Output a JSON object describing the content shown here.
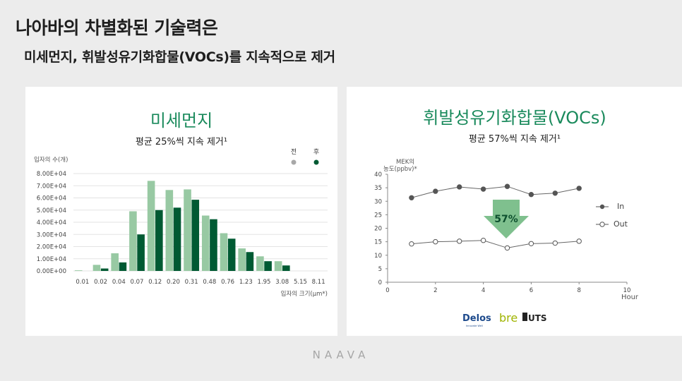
{
  "header": {
    "title": "나아바의 차별화된 기술력은",
    "subtitle": "미세먼지, 휘발성유기화합물(VOCs)를 지속적으로 제거"
  },
  "brand": "NAAVA",
  "colors": {
    "accent": "#1a8a5c",
    "before": "#98c9a3",
    "after": "#005a33",
    "line": "#555555"
  },
  "chart_data": [
    {
      "type": "bar",
      "title": "미세먼지",
      "subtitle": "평균 25%씩 지속 제거¹",
      "ylabel": "입자의 수(개)",
      "xlabel": "입자의 크기(μm*)",
      "ylim": [
        0,
        80000
      ],
      "grid": true,
      "legend": "top-right",
      "y_ticks": [
        "0.00E+00",
        "1.00E+04",
        "2.00E+04",
        "3.00E+04",
        "4.00E+04",
        "5.00E+04",
        "6.00E+04",
        "7.00E+04",
        "8.00E+04"
      ],
      "categories": [
        "0.01",
        "0.02",
        "0.04",
        "0.07",
        "0.12",
        "0.20",
        "0.31",
        "0.48",
        "0.76",
        "1.23",
        "1.95",
        "3.08",
        "5.15",
        "8.11"
      ],
      "series": [
        {
          "name": "전",
          "values": [
            500,
            5000,
            14500,
            49000,
            74000,
            66500,
            67000,
            45500,
            31000,
            18500,
            12000,
            8000,
            0,
            0
          ]
        },
        {
          "name": "후",
          "values": [
            0,
            2000,
            7000,
            30000,
            50000,
            52000,
            58500,
            42500,
            26500,
            15500,
            8000,
            4500,
            0,
            0
          ]
        }
      ]
    },
    {
      "type": "line",
      "title": "휘발성유기화합물(VOCs)",
      "subtitle": "평균 57%씩 지속 제거¹",
      "ylabel": "MEK의\n농도(ppbv)*",
      "xlabel": "Hour",
      "xlim": [
        0,
        10
      ],
      "ylim": [
        0,
        40
      ],
      "x_ticks": [
        "0",
        "2",
        "4",
        "6",
        "8",
        "10"
      ],
      "y_ticks": [
        "0",
        "5",
        "10",
        "15",
        "20",
        "25",
        "30",
        "35",
        "40"
      ],
      "legend": "right",
      "annotation": "57%",
      "x": [
        1,
        2,
        3,
        4,
        5,
        6,
        7,
        8
      ],
      "series": [
        {
          "name": "In",
          "values": [
            31.3,
            33.7,
            35.3,
            34.5,
            35.5,
            32.5,
            33,
            34.8
          ]
        },
        {
          "name": "Out",
          "values": [
            14.2,
            15,
            15.2,
            15.5,
            12.7,
            14.3,
            14.5,
            15.2
          ]
        }
      ],
      "logos": [
        "Delos",
        "bre",
        "UTS"
      ],
      "logo_tagline": "Innovate Well"
    }
  ]
}
